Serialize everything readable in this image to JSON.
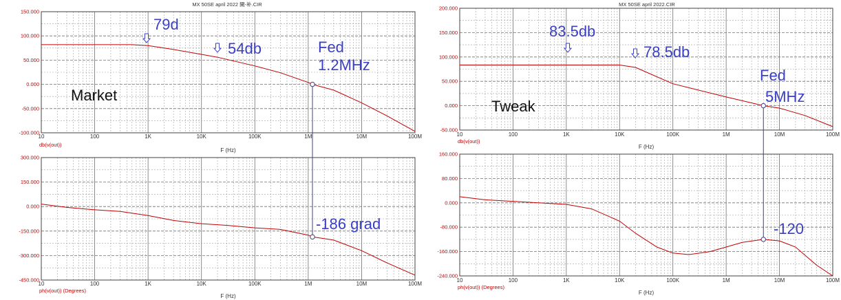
{
  "panels": [
    {
      "title": "MX 50SE april 2022 開-补.CIR",
      "x_ticks": [
        "10",
        "100",
        "1K",
        "10K",
        "100K",
        "1M",
        "10M",
        "100M"
      ],
      "xlabel": "F (Hz)",
      "top": {
        "trace_label": "db(v(out))",
        "y_ticks": [
          "150.000",
          "100.000",
          "50.000",
          "0.000",
          "-50.000",
          "-100.000"
        ],
        "ylim": [
          -100,
          150
        ]
      },
      "bottom": {
        "trace_label": "ph(v(out)) (Degrees)",
        "y_ticks": [
          "300.000",
          "150.000",
          "0.000",
          "-150.000",
          "-300.000",
          "-450.000"
        ],
        "ylim": [
          -450,
          300
        ]
      },
      "annotations": {
        "name": "Market",
        "gain_a": "79d",
        "gain_b": "54db",
        "fed_1": "Fed",
        "fed_2": "1.2MHz",
        "phase": "-186 grad"
      }
    },
    {
      "title": "MX 50SE april 2022.CIR",
      "x_ticks": [
        "10",
        "100",
        "1K",
        "10K",
        "100K",
        "1M",
        "10M",
        "100M"
      ],
      "xlabel": "F (Hz)",
      "top": {
        "trace_label": "db(v(out))",
        "y_ticks": [
          "200.000",
          "150.000",
          "100.000",
          "50.000",
          "0.000",
          "-50.000"
        ],
        "ylim": [
          -50,
          200
        ]
      },
      "bottom": {
        "trace_label": "ph(v(out)) (Degrees)",
        "y_ticks": [
          "160.000",
          "80.000",
          "0.000",
          "-80.000",
          "-160.000",
          "-240.000"
        ],
        "ylim": [
          -240,
          160
        ]
      },
      "annotations": {
        "name": "Tweak",
        "gain_a": "83.5db",
        "gain_b": "78.5db",
        "fed_1": "Fed",
        "fed_2": "5MHz",
        "phase": "-120"
      }
    }
  ],
  "chart_data": [
    {
      "type": "line",
      "title": "MX 50SE april 2022 開-补.CIR",
      "xlabel": "F (Hz)",
      "ylabel": "db(v(out))",
      "x_scale": "log",
      "xlim": [
        10,
        100000000
      ],
      "ylim": [
        -100,
        150
      ],
      "grid": true,
      "series": [
        {
          "name": "db(v(out))",
          "x": [
            10,
            100,
            500,
            1000,
            3000,
            10000,
            20000,
            100000,
            300000,
            1000000,
            1200000,
            3000000,
            10000000,
            30000000,
            100000000
          ],
          "y": [
            82,
            82,
            82,
            80,
            72,
            62,
            56,
            38,
            24,
            4,
            0,
            -12,
            -38,
            -65,
            -97
          ]
        }
      ]
    },
    {
      "type": "line",
      "title": "MX 50SE april 2022 開-补.CIR",
      "xlabel": "F (Hz)",
      "ylabel": "ph(v(out)) (Degrees)",
      "x_scale": "log",
      "xlim": [
        10,
        100000000
      ],
      "ylim": [
        -450,
        300
      ],
      "grid": true,
      "series": [
        {
          "name": "ph(v(out))",
          "x": [
            10,
            30,
            100,
            300,
            1000,
            3000,
            10000,
            30000,
            100000,
            300000,
            1000000,
            1200000,
            3000000,
            10000000,
            30000000,
            100000000
          ],
          "y": [
            15,
            -5,
            -20,
            -30,
            -55,
            -85,
            -105,
            -115,
            -130,
            -140,
            -175,
            -186,
            -205,
            -270,
            -345,
            -420
          ]
        }
      ]
    },
    {
      "type": "line",
      "title": "MX 50SE april 2022.CIR",
      "xlabel": "F (Hz)",
      "ylabel": "db(v(out))",
      "x_scale": "log",
      "xlim": [
        10,
        100000000
      ],
      "ylim": [
        -50,
        200
      ],
      "grid": true,
      "series": [
        {
          "name": "db(v(out))",
          "x": [
            10,
            100,
            1000,
            10000,
            20000,
            30000,
            100000,
            300000,
            1000000,
            5000000,
            10000000,
            30000000,
            100000000
          ],
          "y": [
            83.5,
            83.5,
            83.5,
            83.5,
            78.5,
            70,
            45,
            32,
            18,
            0,
            -5,
            -20,
            -43
          ]
        }
      ]
    },
    {
      "type": "line",
      "title": "MX 50SE april 2022.CIR",
      "xlabel": "F (Hz)",
      "ylabel": "ph(v(out)) (Degrees)",
      "x_scale": "log",
      "xlim": [
        10,
        100000000
      ],
      "ylim": [
        -240,
        160
      ],
      "grid": true,
      "series": [
        {
          "name": "ph(v(out))",
          "x": [
            10,
            30,
            100,
            300,
            1000,
            3000,
            10000,
            20000,
            50000,
            100000,
            200000,
            500000,
            1000000,
            2000000,
            5000000,
            10000000,
            20000000,
            50000000,
            100000000
          ],
          "y": [
            20,
            10,
            5,
            0,
            -5,
            -20,
            -60,
            -100,
            -145,
            -165,
            -170,
            -160,
            -145,
            -130,
            -120,
            -125,
            -145,
            -205,
            -240
          ]
        }
      ]
    }
  ],
  "colors": {
    "trace": "#c00000",
    "annotation": "#3a3fc4",
    "grid": "#888888",
    "axis_label": "#c00000"
  }
}
